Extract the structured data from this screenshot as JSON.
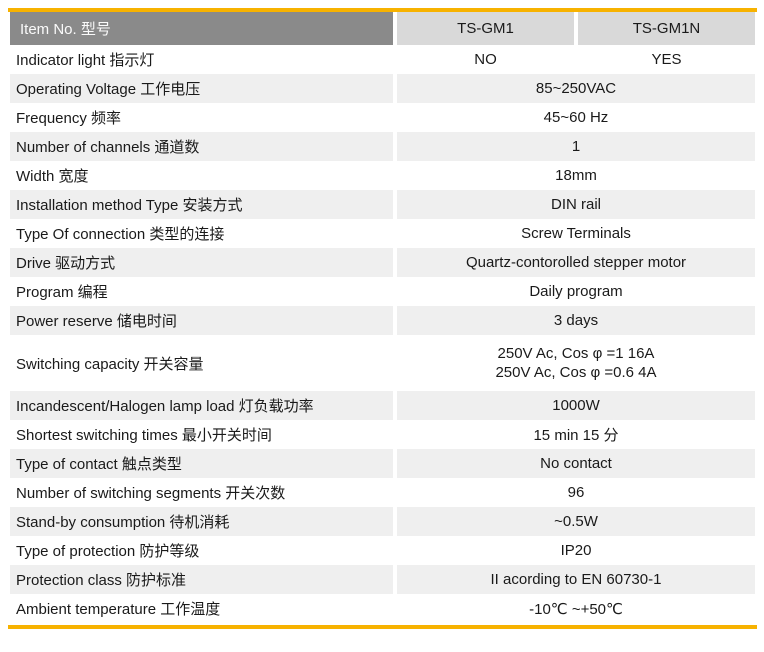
{
  "colors": {
    "accent_line": "#F7B200",
    "header_label_bg": "#8A8A8A",
    "header_model_bg": "#D9D9D9",
    "row_alt_bg": "#EFEFEF",
    "text": "#1A1A1A",
    "header_text": "#FFFFFF"
  },
  "header": {
    "label": "Item No. 型号",
    "col1": "TS-GM1",
    "col2": "TS-GM1N"
  },
  "rows": [
    {
      "label": "Indicator light 指示灯",
      "col1": "NO",
      "col2": "YES"
    },
    {
      "label": "Operating Voltage 工作电压",
      "value": "85~250VAC"
    },
    {
      "label": "Frequency 频率",
      "value": "45~60 Hz"
    },
    {
      "label": "Number of channels 通道数",
      "value": "1"
    },
    {
      "label": "Width 宽度",
      "value": "18mm"
    },
    {
      "label": "Installation method Type 安装方式",
      "value": "DIN rail"
    },
    {
      "label": "Type Of connection 类型的连接",
      "value": "Screw Terminals"
    },
    {
      "label": "Drive 驱动方式",
      "value": "Quartz-contorolled stepper motor"
    },
    {
      "label": "Program 编程",
      "value": "Daily program"
    },
    {
      "label": "Power reserve 储电时间",
      "value": "3 days"
    },
    {
      "label": "Switching capacity 开关容量",
      "value_line1": "250V Ac, Cos φ =1 16A",
      "value_line2": "250V Ac, Cos φ =0.6 4A"
    },
    {
      "label": "Incandescent/Halogen lamp load 灯负载功率",
      "value": "1000W"
    },
    {
      "label": "Shortest switching times 最小开关时间",
      "value": "15 min 15 分"
    },
    {
      "label": "Type of contact 触点类型",
      "value": "No contact"
    },
    {
      "label": "Number of switching segments 开关次数",
      "value": "96"
    },
    {
      "label": "Stand-by consumption 待机消耗",
      "value": "~0.5W"
    },
    {
      "label": "Type of protection 防护等级",
      "value": "IP20"
    },
    {
      "label": "Protection class 防护标准",
      "value": "II acording to EN 60730-1"
    },
    {
      "label": "Ambient temperature 工作温度",
      "value": "-10℃ ~+50℃"
    }
  ]
}
